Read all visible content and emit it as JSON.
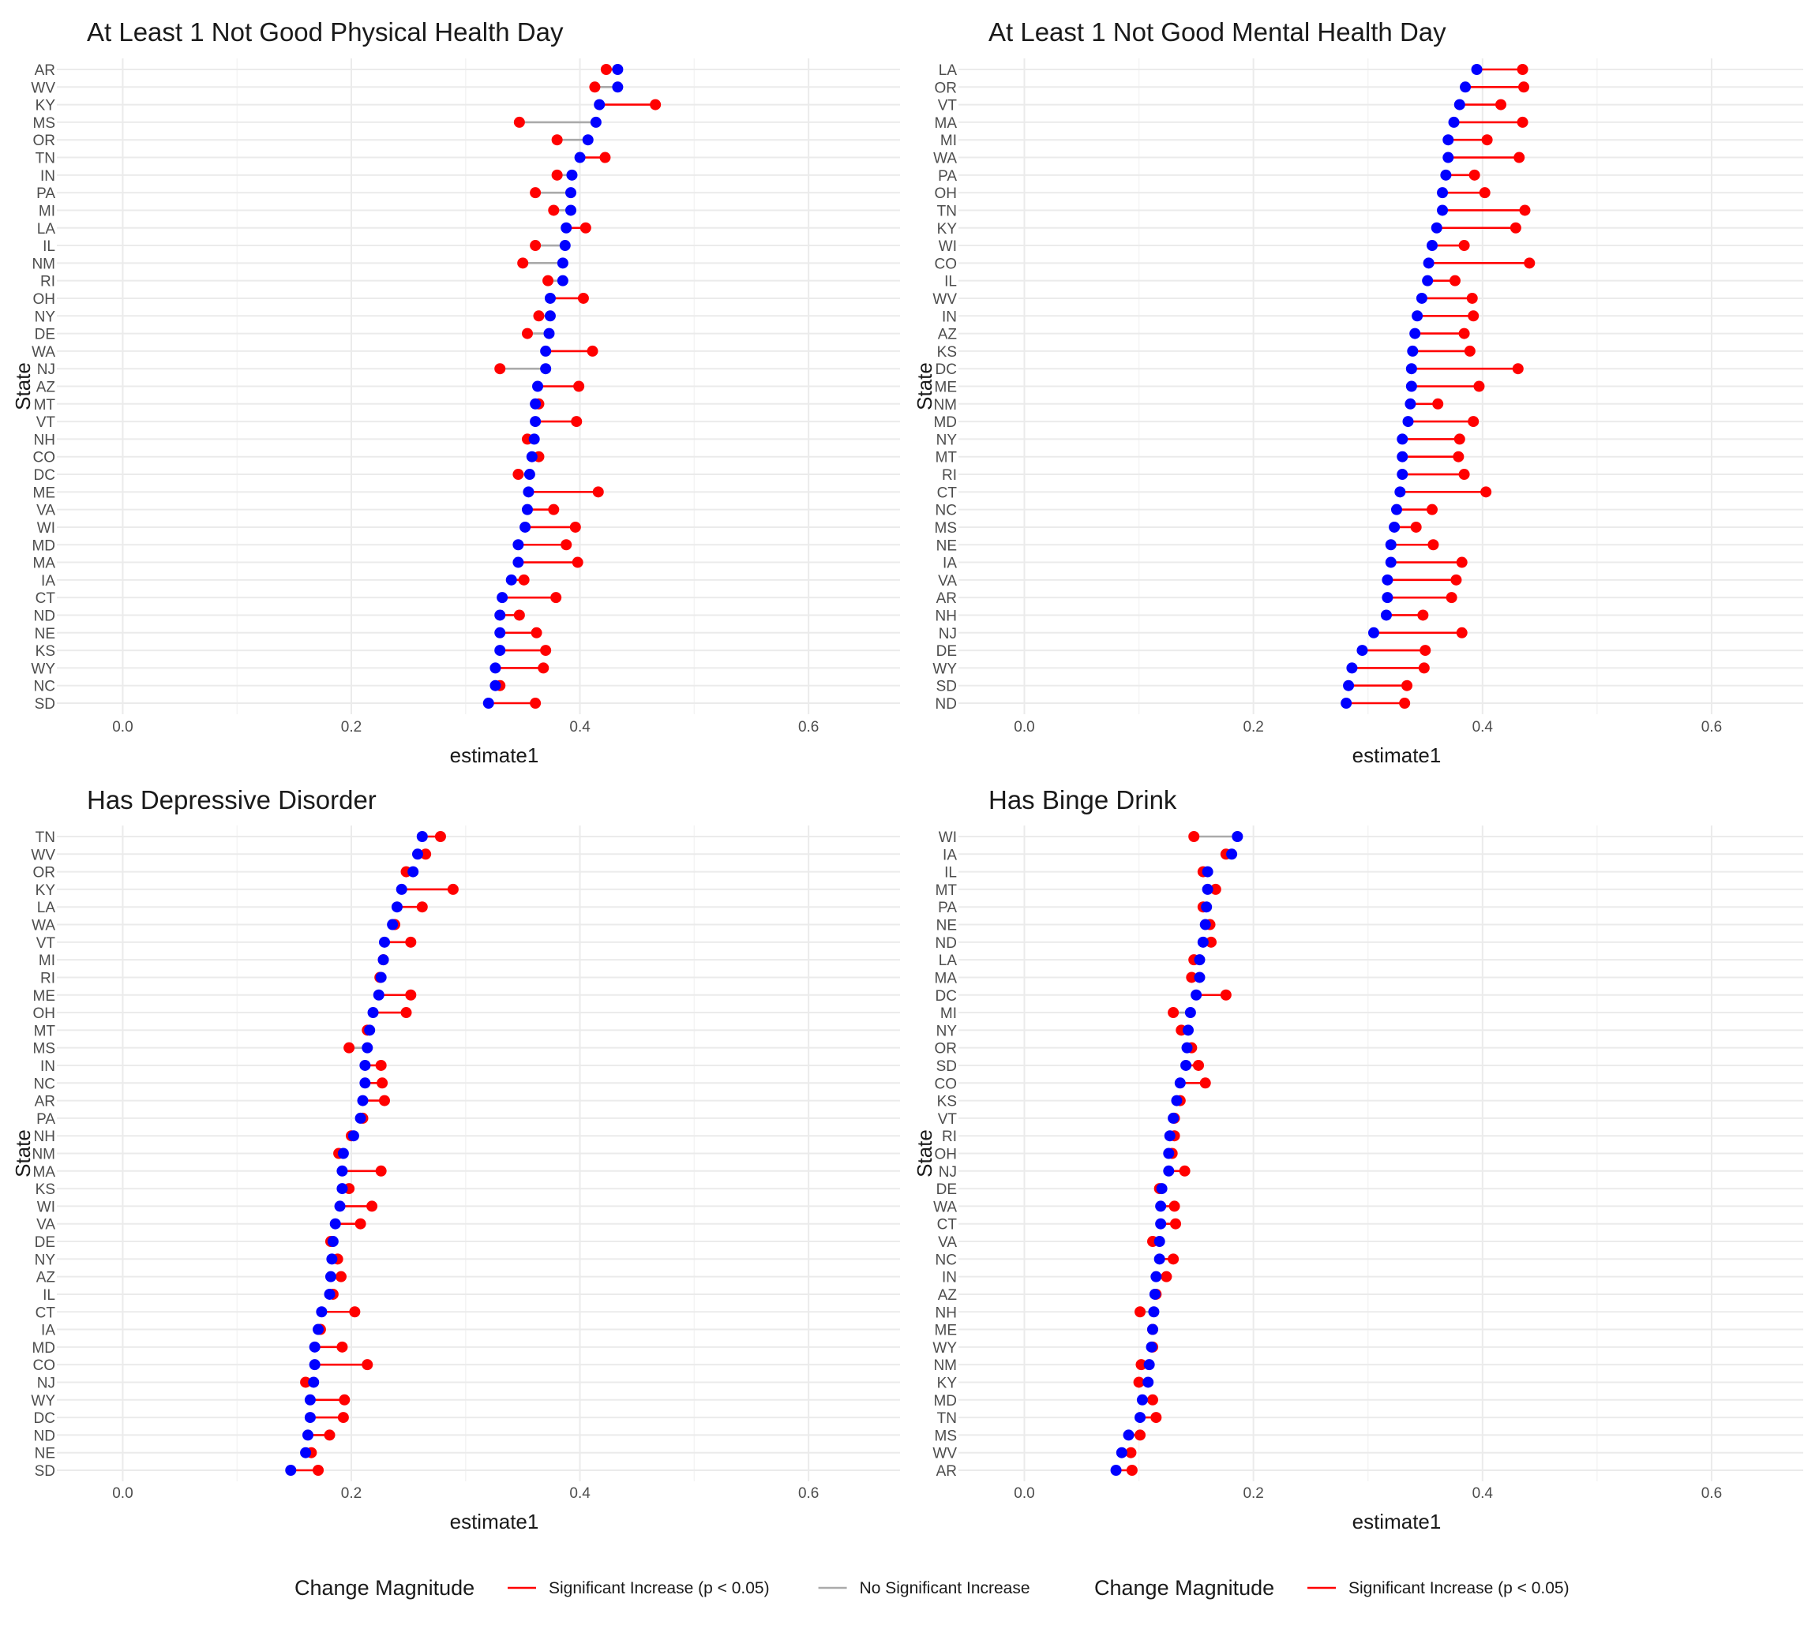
{
  "colors": {
    "significant": "#ff0000",
    "not_significant": "#aaaaaa",
    "point_base": "#0000ff",
    "point_new": "#ff0000",
    "grid_major": "#ebebeb",
    "grid_minor": "#f4f4f4"
  },
  "chart_data": [
    {
      "type": "dumbbell",
      "title": "At Least 1 Not Good Physical Health Day",
      "xlabel": "estimate1",
      "ylabel": "State",
      "xlim": [
        -0.03,
        0.68
      ],
      "xticks": [
        "0.0",
        "0.2",
        "0.4",
        "0.6"
      ],
      "grid": true,
      "states": [
        "AR",
        "WV",
        "KY",
        "MS",
        "OR",
        "TN",
        "IN",
        "PA",
        "MI",
        "LA",
        "IL",
        "NM",
        "RI",
        "OH",
        "NY",
        "DE",
        "WA",
        "NJ",
        "AZ",
        "MT",
        "VT",
        "NH",
        "CO",
        "DC",
        "ME",
        "VA",
        "WI",
        "MD",
        "MA",
        "IA",
        "CT",
        "ND",
        "NE",
        "KS",
        "WY",
        "NC",
        "SD"
      ],
      "estimate1": [
        0.433,
        0.433,
        0.417,
        0.414,
        0.407,
        0.4,
        0.393,
        0.392,
        0.392,
        0.388,
        0.387,
        0.385,
        0.385,
        0.374,
        0.374,
        0.373,
        0.37,
        0.37,
        0.363,
        0.361,
        0.361,
        0.36,
        0.358,
        0.356,
        0.355,
        0.354,
        0.352,
        0.346,
        0.346,
        0.34,
        0.332,
        0.33,
        0.33,
        0.33,
        0.326,
        0.326,
        0.32
      ],
      "estimate2": [
        0.423,
        0.413,
        0.466,
        0.347,
        0.38,
        0.422,
        0.38,
        0.361,
        0.377,
        0.405,
        0.361,
        0.35,
        0.372,
        0.403,
        0.364,
        0.354,
        0.411,
        0.33,
        0.399,
        0.364,
        0.397,
        0.354,
        0.364,
        0.346,
        0.416,
        0.377,
        0.396,
        0.388,
        0.398,
        0.351,
        0.379,
        0.347,
        0.362,
        0.37,
        0.368,
        0.33,
        0.361
      ],
      "significant": [
        1,
        0,
        1,
        0,
        0,
        1,
        0,
        0,
        0,
        1,
        0,
        0,
        0,
        1,
        0,
        0,
        1,
        0,
        1,
        1,
        1,
        0,
        1,
        0,
        1,
        1,
        1,
        1,
        1,
        1,
        1,
        1,
        1,
        1,
        1,
        1,
        1
      ]
    },
    {
      "type": "dumbbell",
      "title": "At Least 1 Not Good Mental Health Day",
      "xlabel": "estimate1",
      "ylabel": "State",
      "xlim": [
        -0.03,
        0.68
      ],
      "xticks": [
        "0.0",
        "0.2",
        "0.4",
        "0.6"
      ],
      "grid": true,
      "states": [
        "LA",
        "OR",
        "VT",
        "MA",
        "MI",
        "WA",
        "PA",
        "OH",
        "TN",
        "KY",
        "WI",
        "CO",
        "IL",
        "WV",
        "IN",
        "AZ",
        "KS",
        "DC",
        "ME",
        "NM",
        "MD",
        "NY",
        "MT",
        "RI",
        "CT",
        "NC",
        "MS",
        "NE",
        "IA",
        "VA",
        "AR",
        "NH",
        "NJ",
        "DE",
        "WY",
        "SD",
        "ND"
      ],
      "estimate1": [
        0.395,
        0.385,
        0.38,
        0.375,
        0.37,
        0.37,
        0.368,
        0.365,
        0.365,
        0.36,
        0.356,
        0.353,
        0.352,
        0.347,
        0.343,
        0.341,
        0.339,
        0.338,
        0.338,
        0.337,
        0.335,
        0.33,
        0.33,
        0.33,
        0.328,
        0.325,
        0.323,
        0.32,
        0.32,
        0.317,
        0.317,
        0.316,
        0.305,
        0.295,
        0.286,
        0.283,
        0.281
      ],
      "estimate2": [
        0.435,
        0.436,
        0.416,
        0.435,
        0.404,
        0.432,
        0.393,
        0.402,
        0.437,
        0.429,
        0.384,
        0.441,
        0.376,
        0.391,
        0.392,
        0.384,
        0.389,
        0.431,
        0.397,
        0.361,
        0.392,
        0.38,
        0.379,
        0.384,
        0.403,
        0.356,
        0.342,
        0.357,
        0.382,
        0.377,
        0.373,
        0.348,
        0.382,
        0.35,
        0.349,
        0.334,
        0.332
      ],
      "significant": [
        1,
        1,
        1,
        1,
        1,
        1,
        1,
        1,
        1,
        1,
        1,
        1,
        1,
        1,
        1,
        1,
        1,
        1,
        1,
        1,
        1,
        1,
        1,
        1,
        1,
        1,
        1,
        1,
        1,
        1,
        1,
        1,
        1,
        1,
        1,
        1,
        1
      ]
    },
    {
      "type": "dumbbell",
      "title": "Has Depressive Disorder",
      "xlabel": "estimate1",
      "ylabel": "State",
      "xlim": [
        -0.03,
        0.68
      ],
      "xticks": [
        "0.0",
        "0.2",
        "0.4",
        "0.6"
      ],
      "grid": true,
      "states": [
        "TN",
        "WV",
        "OR",
        "KY",
        "LA",
        "WA",
        "VT",
        "MI",
        "RI",
        "ME",
        "OH",
        "MT",
        "MS",
        "IN",
        "NC",
        "AR",
        "PA",
        "NH",
        "NM",
        "MA",
        "KS",
        "WI",
        "VA",
        "DE",
        "NY",
        "AZ",
        "IL",
        "CT",
        "IA",
        "MD",
        "CO",
        "NJ",
        "WY",
        "DC",
        "ND",
        "NE",
        "SD"
      ],
      "estimate1": [
        0.262,
        0.258,
        0.254,
        0.244,
        0.24,
        0.236,
        0.229,
        0.228,
        0.226,
        0.224,
        0.219,
        0.216,
        0.214,
        0.212,
        0.212,
        0.21,
        0.208,
        0.202,
        0.193,
        0.192,
        0.192,
        0.19,
        0.186,
        0.184,
        0.183,
        0.182,
        0.181,
        0.174,
        0.171,
        0.168,
        0.168,
        0.167,
        0.164,
        0.164,
        0.162,
        0.16,
        0.147
      ],
      "estimate2": [
        0.278,
        0.265,
        0.248,
        0.289,
        0.262,
        0.238,
        0.252,
        0.228,
        0.225,
        0.252,
        0.248,
        0.214,
        0.198,
        0.226,
        0.227,
        0.229,
        0.21,
        0.2,
        0.189,
        0.226,
        0.198,
        0.218,
        0.208,
        0.182,
        0.188,
        0.191,
        0.184,
        0.203,
        0.173,
        0.192,
        0.214,
        0.16,
        0.194,
        0.193,
        0.181,
        0.165,
        0.171
      ],
      "significant": [
        1,
        1,
        0,
        1,
        1,
        1,
        1,
        1,
        1,
        1,
        1,
        0,
        0,
        1,
        1,
        1,
        1,
        0,
        0,
        1,
        1,
        1,
        1,
        0,
        1,
        1,
        1,
        1,
        1,
        1,
        1,
        0,
        1,
        1,
        1,
        1,
        1
      ]
    },
    {
      "type": "dumbbell",
      "title": "Has Binge Drink",
      "xlabel": "estimate1",
      "ylabel": "State",
      "xlim": [
        -0.03,
        0.68
      ],
      "xticks": [
        "0.0",
        "0.2",
        "0.4",
        "0.6"
      ],
      "grid": true,
      "states": [
        "WI",
        "IA",
        "IL",
        "MT",
        "PA",
        "NE",
        "ND",
        "LA",
        "MA",
        "DC",
        "MI",
        "NY",
        "OR",
        "SD",
        "CO",
        "KS",
        "VT",
        "RI",
        "OH",
        "NJ",
        "DE",
        "WA",
        "CT",
        "VA",
        "NC",
        "IN",
        "AZ",
        "NH",
        "ME",
        "WY",
        "NM",
        "KY",
        "MD",
        "TN",
        "MS",
        "WV",
        "AR"
      ],
      "estimate1": [
        0.186,
        0.181,
        0.16,
        0.16,
        0.159,
        0.158,
        0.156,
        0.153,
        0.153,
        0.15,
        0.145,
        0.143,
        0.142,
        0.141,
        0.136,
        0.133,
        0.13,
        0.127,
        0.126,
        0.126,
        0.12,
        0.119,
        0.119,
        0.118,
        0.118,
        0.115,
        0.114,
        0.113,
        0.112,
        0.111,
        0.109,
        0.108,
        0.103,
        0.101,
        0.091,
        0.085,
        0.08
      ],
      "estimate2": [
        0.148,
        0.176,
        0.156,
        0.167,
        0.156,
        0.162,
        0.163,
        0.148,
        0.146,
        0.176,
        0.13,
        0.137,
        0.146,
        0.152,
        0.158,
        0.136,
        0.131,
        0.131,
        0.129,
        0.14,
        0.118,
        0.131,
        0.132,
        0.112,
        0.13,
        0.124,
        0.115,
        0.101,
        0.112,
        0.112,
        0.102,
        0.1,
        0.112,
        0.115,
        0.101,
        0.093,
        0.094
      ],
      "significant": [
        0,
        1,
        1,
        1,
        1,
        1,
        1,
        1,
        1,
        1,
        0,
        0,
        1,
        1,
        1,
        1,
        1,
        1,
        1,
        1,
        1,
        1,
        1,
        0,
        1,
        1,
        1,
        0,
        1,
        1,
        0,
        0,
        1,
        1,
        1,
        1,
        1
      ]
    }
  ],
  "legends": [
    {
      "title": "Change Magnitude",
      "items": [
        {
          "label": "Significant Increase (p < 0.05)",
          "color": "#ff0000"
        },
        {
          "label": "No Significant Increase",
          "color": "#aaaaaa"
        }
      ]
    },
    {
      "title": "Change Magnitude",
      "items": [
        {
          "label": "Significant Increase (p < 0.05)",
          "color": "#ff0000"
        }
      ]
    }
  ]
}
